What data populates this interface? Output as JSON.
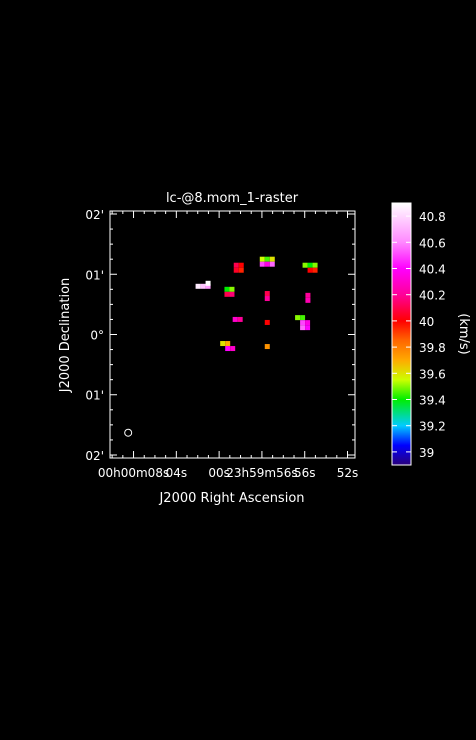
{
  "colors": {
    "background": "#000000",
    "foreground": "#ffffff"
  },
  "chart_data": {
    "type": "heatmap",
    "title": "lc-@8.mom_1-raster",
    "xlabel": "J2000 Right Ascension",
    "ylabel": "J2000 Declination",
    "grid": false,
    "legend": "right",
    "x_axis": {
      "unit": "arcsec of RA relative to 00h00m00s",
      "range": [
        10.2,
        -12.7
      ],
      "ticks": [
        {
          "value": 8,
          "label": "00h00m08s"
        },
        {
          "value": 4,
          "label": "04s"
        },
        {
          "value": 0,
          "label": "00s"
        },
        {
          "value": -4,
          "label": "23h59m56s"
        },
        {
          "value": -8,
          "label": "56s"
        },
        {
          "value": -12,
          "label": "52s"
        }
      ]
    },
    "y_axis": {
      "unit": "arcmin of Dec",
      "range": [
        -2.05,
        2.05
      ],
      "ticks": [
        {
          "value": 2,
          "label": "02'"
        },
        {
          "value": 1,
          "label": "01'"
        },
        {
          "value": 0,
          "label": "0°"
        },
        {
          "value": -1,
          "label": "01'"
        },
        {
          "value": -2,
          "label": "02'"
        }
      ]
    },
    "colorbar": {
      "label": "(km/s)",
      "min": 38.9,
      "max": 40.9,
      "ticks": [
        39,
        39.2,
        39.4,
        39.6,
        39.8,
        40,
        40.2,
        40.4,
        40.6,
        40.8
      ],
      "colormap": [
        {
          "v": 38.9,
          "c": "#2a007a"
        },
        {
          "v": 39.05,
          "c": "#0000ff"
        },
        {
          "v": 39.2,
          "c": "#00ccff"
        },
        {
          "v": 39.4,
          "c": "#00ee00"
        },
        {
          "v": 39.55,
          "c": "#ccff00"
        },
        {
          "v": 39.7,
          "c": "#ffaa00"
        },
        {
          "v": 39.85,
          "c": "#ff6600"
        },
        {
          "v": 40.0,
          "c": "#ff0000"
        },
        {
          "v": 40.2,
          "c": "#ff0099"
        },
        {
          "v": 40.4,
          "c": "#ff00ff"
        },
        {
          "v": 40.6,
          "c": "#ff88ff"
        },
        {
          "v": 40.9,
          "c": "#ffffff"
        }
      ]
    },
    "beam": {
      "x": 8.5,
      "y": -1.63
    },
    "blobs": [
      {
        "x": 1.5,
        "y": 0.8,
        "cells": [
          [
            -1,
            0,
            40.85
          ],
          [
            0,
            0,
            40.75
          ],
          [
            1,
            0,
            40.65
          ],
          [
            1,
            0.6,
            40.9
          ]
        ]
      },
      {
        "x": -1.6,
        "y": 1.15,
        "cells": [
          [
            0,
            0,
            40.1
          ],
          [
            1,
            0,
            40.0
          ],
          [
            0,
            -1,
            40.05
          ],
          [
            1,
            -1,
            39.95
          ]
        ]
      },
      {
        "x": -4.5,
        "y": 1.25,
        "cells": [
          [
            -1,
            0,
            39.55
          ],
          [
            0,
            0,
            39.45
          ],
          [
            1,
            0,
            39.6
          ],
          [
            -1,
            -1,
            40.5
          ],
          [
            0,
            -1,
            40.35
          ],
          [
            1,
            -1,
            40.55
          ]
        ]
      },
      {
        "x": -8.5,
        "y": 1.15,
        "cells": [
          [
            -1,
            0,
            39.5
          ],
          [
            0,
            0,
            39.4
          ],
          [
            1,
            0,
            39.5
          ],
          [
            0,
            -1,
            40.0
          ],
          [
            1,
            -1,
            39.95
          ]
        ]
      },
      {
        "x": -1.2,
        "y": 0.75,
        "cells": [
          [
            -1,
            0,
            39.4
          ],
          [
            0,
            0,
            39.5
          ],
          [
            -1,
            -1,
            40.1
          ],
          [
            0,
            -1,
            40.15
          ]
        ]
      },
      {
        "x": -4.5,
        "y": 0.68,
        "cells": [
          [
            0,
            0,
            40.1
          ],
          [
            0,
            -1,
            40.2
          ]
        ]
      },
      {
        "x": -8.3,
        "y": 0.65,
        "cells": [
          [
            0,
            0,
            40.2
          ],
          [
            0,
            -1,
            40.25
          ]
        ]
      },
      {
        "x": -1.5,
        "y": 0.25,
        "cells": [
          [
            0,
            0,
            40.3
          ],
          [
            1,
            0,
            40.2
          ]
        ]
      },
      {
        "x": -4.5,
        "y": 0.2,
        "cells": [
          [
            0,
            0,
            40.0
          ]
        ]
      },
      {
        "x": -7.8,
        "y": 0.28,
        "cells": [
          [
            -1,
            0,
            39.5
          ],
          [
            0,
            0,
            39.45
          ],
          [
            0,
            -1,
            40.5
          ],
          [
            1,
            -1,
            40.35
          ],
          [
            0,
            -2,
            40.55
          ],
          [
            1,
            -2,
            40.4
          ]
        ]
      },
      {
        "x": -0.8,
        "y": -0.15,
        "cells": [
          [
            -1,
            0,
            39.6
          ],
          [
            0,
            0,
            39.7
          ],
          [
            0,
            -1,
            40.4
          ],
          [
            1,
            -1,
            40.3
          ]
        ]
      },
      {
        "x": -4.5,
        "y": -0.2,
        "cells": [
          [
            0,
            0,
            39.75
          ]
        ]
      }
    ]
  }
}
